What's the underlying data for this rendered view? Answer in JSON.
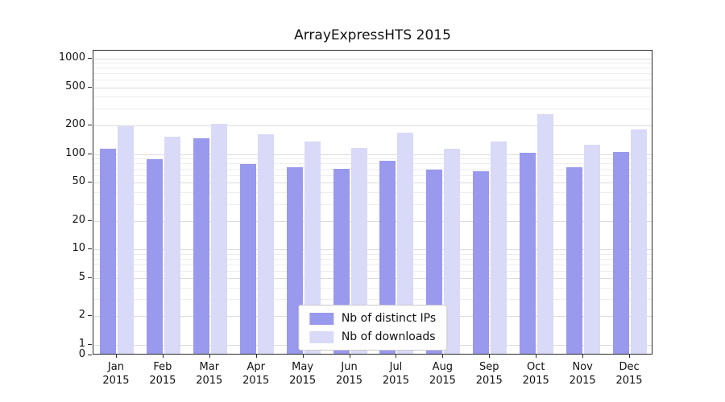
{
  "chart_data": {
    "type": "bar",
    "title": "ArrayExpressHTS 2015",
    "yscale": "log",
    "ylim": [
      0,
      1000
    ],
    "yticks": [
      0,
      1,
      2,
      5,
      10,
      20,
      50,
      100,
      200,
      500,
      1000
    ],
    "grid": true,
    "legend_position": "lower center inside plot",
    "year": "2015",
    "categories": [
      "Jan",
      "Feb",
      "Mar",
      "Apr",
      "May",
      "Jun",
      "Jul",
      "Aug",
      "Sep",
      "Oct",
      "Nov",
      "Dec"
    ],
    "series": [
      {
        "name": "Nb of distinct IPs",
        "color": "#9999ee",
        "values": [
          110,
          85,
          140,
          76,
          70,
          67,
          82,
          66,
          64,
          100,
          70,
          102
        ]
      },
      {
        "name": "Nb of downloads",
        "color": "#d9d9f8",
        "values": [
          190,
          145,
          200,
          155,
          130,
          112,
          160,
          110,
          130,
          250,
          120,
          175
        ]
      }
    ]
  }
}
